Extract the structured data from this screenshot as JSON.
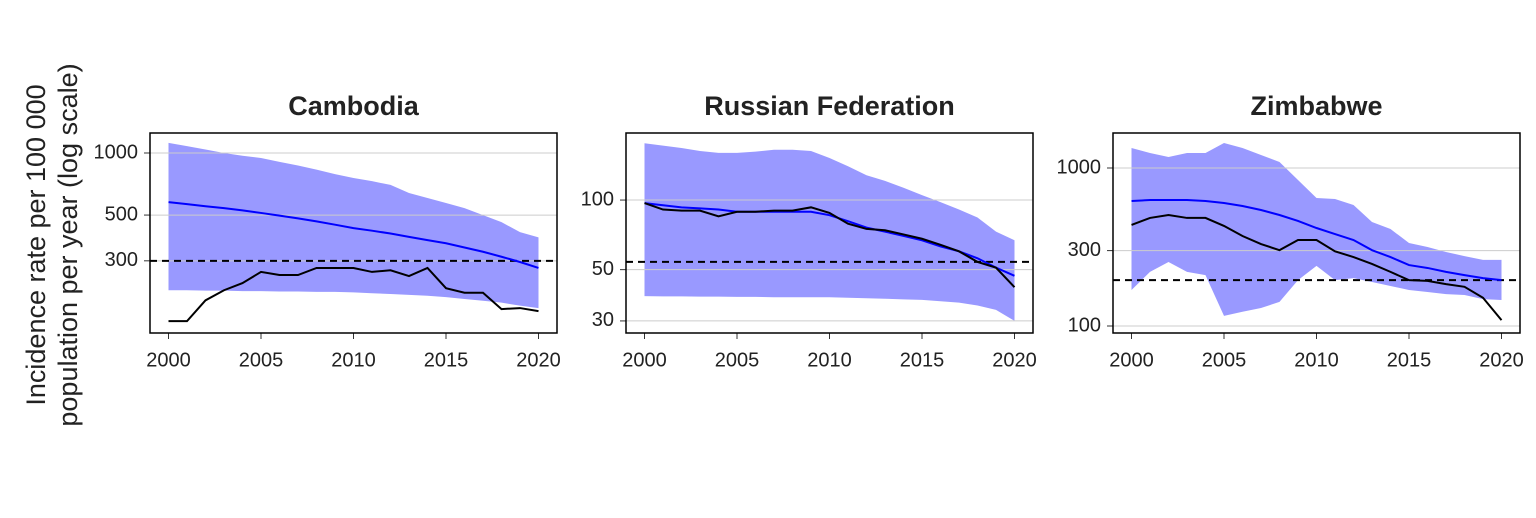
{
  "ylabel": [
    "Incidence rate per 100 000",
    "population per year (log scale)"
  ],
  "chart_data": [
    {
      "type": "line",
      "title": "Cambodia",
      "x": [
        2000,
        2001,
        2002,
        2003,
        2004,
        2005,
        2006,
        2007,
        2008,
        2009,
        2010,
        2011,
        2012,
        2013,
        2014,
        2015,
        2016,
        2017,
        2018,
        2019,
        2020
      ],
      "xlim": [
        1999,
        2021
      ],
      "xticks": [
        2000,
        2005,
        2010,
        2015,
        2020
      ],
      "log_y": true,
      "ylim": [
        134,
        1250
      ],
      "yticks": [
        300,
        500,
        1000
      ],
      "grid": true,
      "band": {
        "color": "#9999ff",
        "upper": [
          1120,
          1080,
          1040,
          1000,
          970,
          945,
          905,
          870,
          830,
          790,
          756,
          730,
          700,
          640,
          605,
          572,
          540,
          500,
          462,
          413,
          390
        ],
        "lower": [
          216,
          216,
          215,
          215,
          214,
          214,
          213,
          213,
          212,
          212,
          211,
          209,
          207,
          205,
          203,
          200,
          196,
          192,
          188,
          182,
          177
        ]
      },
      "series": [
        {
          "color": "#0000ff",
          "values": [
            578,
            565,
            552,
            540,
            527,
            512,
            497,
            482,
            466,
            449,
            432,
            420,
            407,
            392,
            378,
            365,
            348,
            332,
            314,
            296,
            277
          ]
        },
        {
          "color": "#000000",
          "values": [
            153,
            153,
            193,
            216,
            234,
            265,
            256,
            256,
            277,
            277,
            277,
            265,
            270,
            253,
            277,
            221,
            210,
            210,
            175,
            177,
            171
          ]
        }
      ],
      "hline": {
        "value": 300,
        "color": "#000000",
        "dashed": true
      }
    },
    {
      "type": "line",
      "title": "Russian Federation",
      "x": [
        2000,
        2001,
        2002,
        2003,
        2004,
        2005,
        2006,
        2007,
        2008,
        2009,
        2010,
        2011,
        2012,
        2013,
        2014,
        2015,
        2016,
        2017,
        2018,
        2019,
        2020
      ],
      "xlim": [
        1999,
        2021
      ],
      "xticks": [
        2000,
        2005,
        2010,
        2015,
        2020
      ],
      "log_y": true,
      "ylim": [
        26.6,
        195
      ],
      "yticks": [
        30,
        50,
        100
      ],
      "grid": true,
      "band": {
        "color": "#9999ff",
        "upper": [
          176,
          172,
          168,
          163,
          160,
          160,
          162,
          165,
          165,
          163,
          152,
          140,
          128,
          121,
          113,
          105,
          98,
          91,
          84,
          73,
          67
        ],
        "lower": [
          38.4,
          38.3,
          38.3,
          38.2,
          38.2,
          38.1,
          38.1,
          38,
          38,
          38,
          38,
          37.8,
          37.6,
          37.4,
          37.2,
          37,
          36.5,
          36,
          35,
          33.5,
          30
        ]
      },
      "series": [
        {
          "color": "#0000ff",
          "values": [
            97,
            95,
            93,
            92,
            91,
            89,
            89,
            89,
            89,
            89,
            86,
            81,
            76,
            73,
            70,
            67,
            63,
            60,
            56,
            51,
            47
          ]
        },
        {
          "color": "#000000",
          "values": [
            97,
            91,
            90,
            90,
            85,
            89,
            89,
            90,
            90,
            93,
            88,
            79,
            75,
            74,
            71,
            68,
            64,
            60,
            54,
            51,
            42
          ]
        }
      ],
      "hline": {
        "value": 54,
        "color": "#000000",
        "dashed": true
      }
    },
    {
      "type": "line",
      "title": "Zimbabwe",
      "x": [
        2000,
        2001,
        2002,
        2003,
        2004,
        2005,
        2006,
        2007,
        2008,
        2009,
        2010,
        2011,
        2012,
        2013,
        2014,
        2015,
        2016,
        2017,
        2018,
        2019,
        2020
      ],
      "xlim": [
        1999,
        2021
      ],
      "xticks": [
        2000,
        2005,
        2010,
        2015,
        2020
      ],
      "log_y": true,
      "ylim": [
        90.3,
        1665
      ],
      "yticks": [
        100,
        300,
        1000
      ],
      "grid": true,
      "band": {
        "color": "#9999ff",
        "upper": [
          1338,
          1244,
          1174,
          1244,
          1244,
          1440,
          1338,
          1208,
          1091,
          839,
          646,
          636,
          583,
          455,
          411,
          335,
          316,
          294,
          277,
          262,
          262
        ],
        "lower": [
          169,
          220,
          254,
          220,
          210,
          116,
          123,
          130,
          142,
          195,
          240,
          195,
          201,
          190,
          179,
          169,
          164,
          159,
          157,
          148,
          146
        ]
      },
      "series": [
        {
          "color": "#0000ff",
          "values": [
            618,
            627,
            627,
            627,
            618,
            600,
            575,
            542,
            504,
            462,
            417,
            382,
            350,
            302,
            273,
            243,
            233,
            220,
            210,
            201,
            195
          ]
        },
        {
          "color": "#000000",
          "values": [
            436,
            483,
            504,
            483,
            483,
            430,
            371,
            330,
            302,
            350,
            350,
            297,
            273,
            247,
            220,
            195,
            193,
            184,
            177,
            151,
            109
          ]
        }
      ],
      "hline": {
        "value": 195,
        "color": "#000000",
        "dashed": true
      }
    }
  ]
}
